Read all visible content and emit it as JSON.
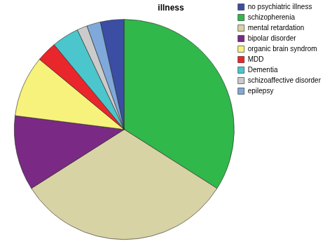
{
  "chart_data": {
    "type": "pie",
    "title": "illness",
    "categories": [
      "no psychiatric illness",
      "schizopherenia",
      "mental retardation",
      "bipolar disorder",
      "organic brain syndrom",
      "MDD",
      "Dementia",
      "schizoaffective disorder",
      "epilepsy"
    ],
    "values": [
      3.5,
      34,
      32,
      11,
      9,
      3,
      4,
      1.5,
      2
    ],
    "colors": [
      "#3b4ea3",
      "#30b84b",
      "#d8d3a5",
      "#7a2a84",
      "#f7f27c",
      "#e8262b",
      "#4cc6cd",
      "#cbcbcb",
      "#7fa9da"
    ],
    "legend": "right"
  }
}
